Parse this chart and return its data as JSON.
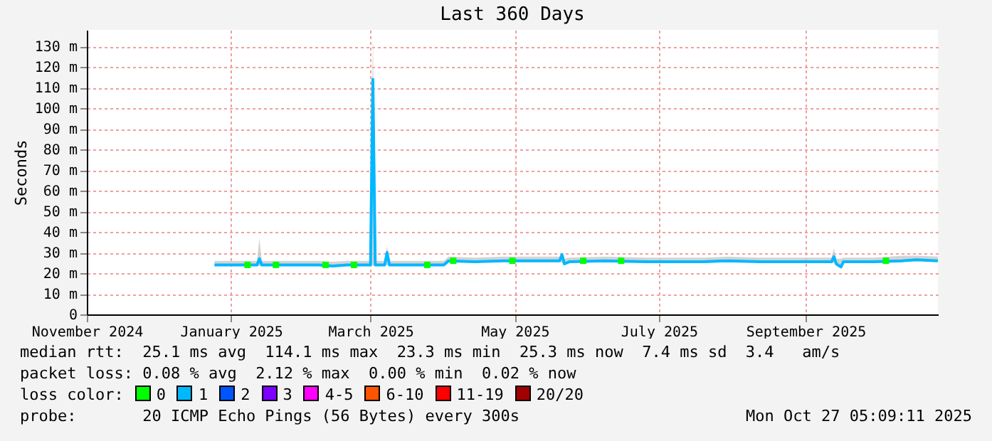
{
  "chart_data": {
    "type": "line",
    "title": "Last 360 Days",
    "ylabel": "Seconds",
    "legend_title": "loss color:",
    "annotations": [
      "median rtt:  25.1 ms avg  114.1 ms max  23.3 ms min  25.3 ms now  7.4 ms sd  3.4   am/s",
      "packet loss: 0.08 % avg  2.12 % max  0.00 % min  0.02 % now",
      "probe:       20 ICMP Echo Pings (56 Bytes) every 300s",
      "Mon Oct 27 05:09:11 2025"
    ],
    "xlim": [
      "2024-11-01",
      "2025-10-27"
    ],
    "xticks": [
      {
        "value": "2024-11-01",
        "label": "November 2024"
      },
      {
        "value": "2025-01-01",
        "label": "January 2025"
      },
      {
        "value": "2025-03-01",
        "label": "March 2025"
      },
      {
        "value": "2025-05-01",
        "label": "May 2025"
      },
      {
        "value": "2025-07-01",
        "label": "July 2025"
      },
      {
        "value": "2025-09-01",
        "label": "September 2025"
      }
    ],
    "ylim": [
      0,
      138
    ],
    "yticks": [
      0,
      {
        "value": 10,
        "label": "10 m"
      },
      {
        "value": 20,
        "label": "20 m"
      },
      {
        "value": 30,
        "label": "30 m"
      },
      {
        "value": 40,
        "label": "40 m"
      },
      {
        "value": 50,
        "label": "50 m"
      },
      {
        "value": 60,
        "label": "60 m"
      },
      {
        "value": 70,
        "label": "70 m"
      },
      {
        "value": 80,
        "label": "80 m"
      },
      {
        "value": 90,
        "label": "90 m"
      },
      {
        "value": 100,
        "label": "100 m"
      },
      {
        "value": 110,
        "label": "110 m"
      },
      {
        "value": 120,
        "label": "120 m"
      },
      {
        "value": 130,
        "label": "130 m"
      }
    ],
    "grid": true,
    "legend": "bottom",
    "series": [
      {
        "name": "0",
        "type": "scatter",
        "color": "#00ff00",
        "x": [
          "2025-01-08",
          "2025-01-20",
          "2025-02-10",
          "2025-02-22",
          "2025-03-25",
          "2025-04-05",
          "2025-04-30",
          "2025-05-30",
          "2025-06-15",
          "2025-10-05"
        ],
        "values": [
          24,
          24,
          24,
          24,
          24,
          26,
          26,
          26,
          26,
          26
        ]
      },
      {
        "name": "1",
        "color": "#00b8ff",
        "x": [
          "2024-12-25",
          "2025-01-02",
          "2025-01-12",
          "2025-01-13",
          "2025-01-14",
          "2025-01-26",
          "2025-02-07",
          "2025-02-13",
          "2025-02-19",
          "2025-03-01",
          "2025-03-02",
          "2025-03-03",
          "2025-03-07",
          "2025-03-08",
          "2025-03-09",
          "2025-03-21",
          "2025-04-01",
          "2025-04-03",
          "2025-04-14",
          "2025-04-26",
          "2025-05-04",
          "2025-05-20",
          "2025-05-21",
          "2025-05-22",
          "2025-05-24",
          "2025-06-08",
          "2025-06-26",
          "2025-07-20",
          "2025-07-30",
          "2025-08-13",
          "2025-09-12",
          "2025-09-13",
          "2025-09-14",
          "2025-09-16",
          "2025-09-17",
          "2025-09-30",
          "2025-10-12",
          "2025-10-18",
          "2025-10-27"
        ],
        "values": [
          24,
          24,
          24,
          27,
          24,
          24,
          24,
          23.5,
          24,
          24,
          114,
          24,
          24,
          30,
          24,
          24,
          24,
          26,
          25.5,
          26,
          26,
          26,
          29,
          24.5,
          25.5,
          26,
          25.5,
          25.5,
          26,
          25.5,
          25.5,
          28,
          24.5,
          23,
          25.5,
          25.5,
          26,
          26.5,
          26
        ],
        "lower": [
          23.5,
          23.5,
          23.5,
          23.5,
          23.5,
          23.5,
          23.5,
          23,
          23.5,
          23.5,
          24,
          23.5,
          23.5,
          24,
          23.5,
          23.5,
          23.5,
          25.5,
          25,
          25.5,
          25.5,
          25.5,
          25,
          24,
          25,
          25.5,
          25,
          25,
          25.5,
          25,
          25,
          25,
          24,
          22.5,
          25,
          25,
          25.5,
          26,
          25.5
        ],
        "upper": [
          26,
          26,
          26,
          37,
          26,
          26,
          26,
          25.5,
          26,
          26,
          137,
          26,
          26,
          33,
          26,
          26,
          26,
          28,
          27.5,
          28,
          28,
          28,
          30,
          27,
          27.5,
          28,
          27.5,
          27.5,
          28,
          27.5,
          27.5,
          32,
          27,
          27,
          27.5,
          27.5,
          28.5,
          28.5,
          28
        ]
      },
      {
        "name": "2",
        "type": "scatter",
        "color": "#0055ff"
      },
      {
        "name": "3",
        "type": "scatter",
        "color": "#7e00ff"
      },
      {
        "name": "4-5",
        "type": "scatter",
        "color": "#ff00ff"
      },
      {
        "name": "6-10",
        "type": "scatter",
        "color": "#ff5500"
      },
      {
        "name": "11-19",
        "type": "scatter",
        "color": "#ff0000"
      },
      {
        "name": "20/20",
        "type": "scatter",
        "color": "#a10000"
      }
    ]
  }
}
